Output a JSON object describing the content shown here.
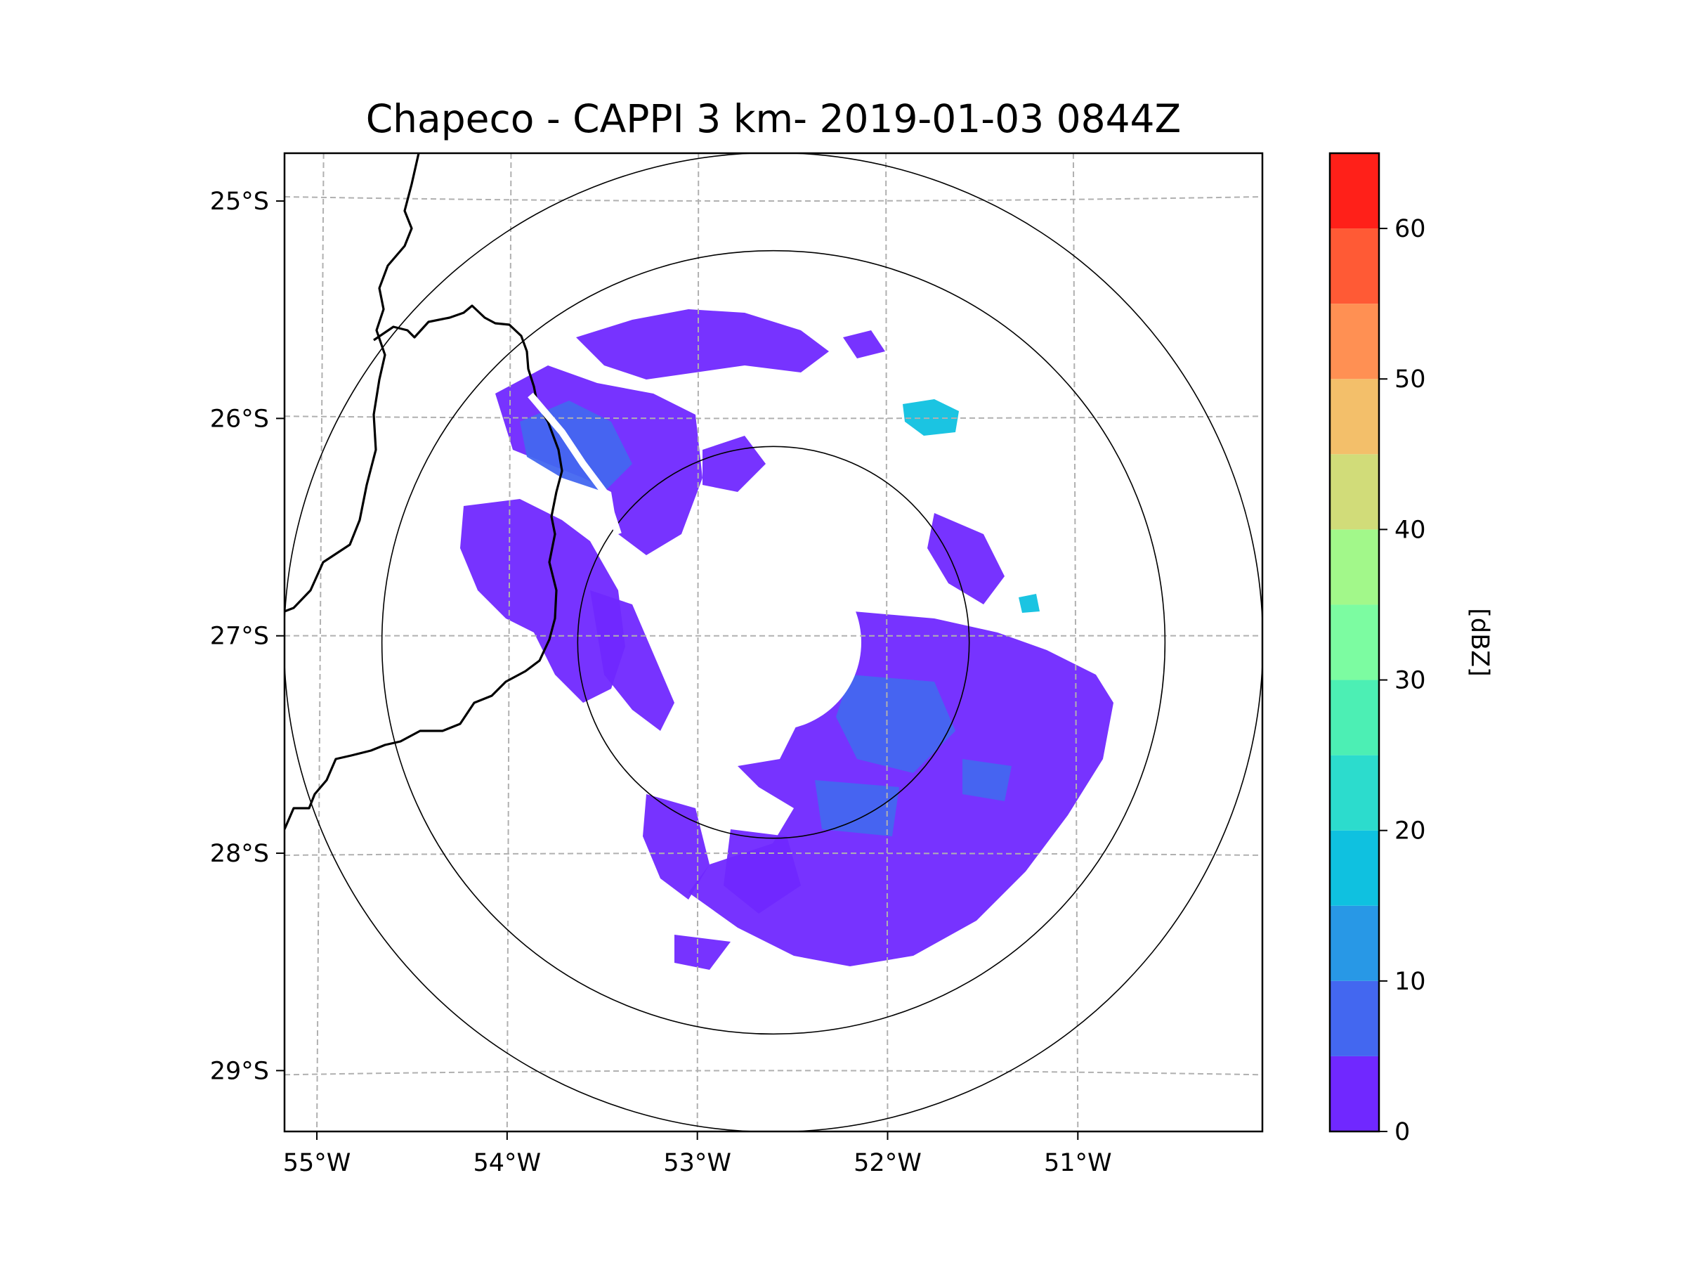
{
  "chart_data": {
    "type": "heatmap",
    "title": "Chapeco - CAPPI 3 km- 2019-01-03 0844Z",
    "x_ticks": [
      "55°W",
      "54°W",
      "53°W",
      "52°W",
      "51°W"
    ],
    "y_ticks": [
      "25°S",
      "26°S",
      "27°S",
      "28°S",
      "29°S"
    ],
    "x_tick_values": [
      -55,
      -54,
      -53,
      -52,
      -51
    ],
    "y_tick_values": [
      -25,
      -26,
      -27,
      -28,
      -29
    ],
    "xlim": [
      -55.17,
      -50.03
    ],
    "ylim": [
      -29.28,
      -24.78
    ],
    "radar_center": {
      "lon": -52.6,
      "lat": -27.03
    },
    "range_rings_km": [
      100,
      200,
      250
    ],
    "grid": true,
    "colorbar": {
      "label": "[dBZ]",
      "ticks": [
        "0",
        "10",
        "20",
        "30",
        "40",
        "50",
        "60"
      ],
      "tick_values": [
        0,
        10,
        20,
        30,
        40,
        50,
        60
      ],
      "range": [
        0,
        65
      ],
      "bins": [
        0,
        5,
        10,
        15,
        20,
        25,
        30,
        35,
        40,
        45,
        50,
        55,
        60,
        65
      ],
      "colors": [
        "#7028ff",
        "#4367f0",
        "#2898e6",
        "#0fc1e0",
        "#2cdccd",
        "#4cefb4",
        "#7cfca1",
        "#a2f88a",
        "#d1dc79",
        "#f3bf6a",
        "#ff9053",
        "#ff5a35",
        "#ff2019"
      ]
    },
    "echo_regions": [
      {
        "name": "southeast-precip",
        "dbz": 3
      },
      {
        "name": "southeast-embedded",
        "dbz": 8
      },
      {
        "name": "northwest-band",
        "dbz": 3
      },
      {
        "name": "northwest-band-core",
        "dbz": 8
      },
      {
        "name": "west-cluster",
        "dbz": 3
      },
      {
        "name": "north-scatter",
        "dbz": 3
      },
      {
        "name": "northeast-cell",
        "dbz": 18
      }
    ]
  },
  "colors": {
    "axis": "#000000",
    "grid": "#b0b0b0",
    "border": "#000000"
  }
}
